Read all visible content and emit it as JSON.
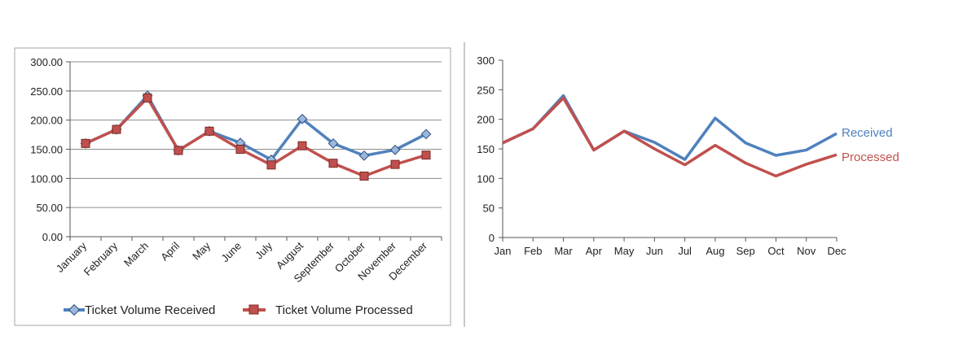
{
  "colors": {
    "received": "#4f81bd",
    "processed": "#c0504d",
    "grid": "#8c8c8c",
    "axis": "#555555",
    "frame": "#a6a6a6",
    "divider": "#c8c8c8"
  },
  "chart_data": [
    {
      "type": "line",
      "categories": [
        "January",
        "February",
        "March",
        "April",
        "May",
        "June",
        "July",
        "August",
        "September",
        "October",
        "November",
        "December"
      ],
      "series": [
        {
          "name": "Ticket Volume Received",
          "values": [
            160,
            184,
            242,
            148,
            181,
            161,
            132,
            202,
            160,
            139,
            149,
            176
          ]
        },
        {
          "name": "Ticket Volume Processed",
          "values": [
            160,
            184,
            238,
            148,
            181,
            150,
            123,
            156,
            126,
            104,
            124,
            140
          ]
        }
      ],
      "yticks": [
        "0.00",
        "50.00",
        "100.00",
        "150.00",
        "200.00",
        "250.00",
        "300.00"
      ],
      "ylim": [
        0,
        300
      ],
      "grid": true,
      "markers": true,
      "legend": {
        "placement": "bottom",
        "entries": [
          "Ticket Volume Received",
          "Ticket Volume Processed"
        ]
      },
      "title": "",
      "xlabel": "",
      "ylabel": ""
    },
    {
      "type": "line",
      "categories": [
        "Jan",
        "Feb",
        "Mar",
        "Apr",
        "May",
        "Jun",
        "Jul",
        "Aug",
        "Sep",
        "Oct",
        "Nov",
        "Dec"
      ],
      "series": [
        {
          "name": "Received",
          "values": [
            160,
            184,
            240,
            148,
            180,
            161,
            132,
            202,
            160,
            139,
            148,
            176
          ]
        },
        {
          "name": "Processed",
          "values": [
            160,
            184,
            236,
            148,
            180,
            150,
            123,
            156,
            126,
            104,
            124,
            140
          ]
        }
      ],
      "yticks": [
        "0",
        "50",
        "100",
        "150",
        "200",
        "250",
        "300"
      ],
      "ylim": [
        0,
        300
      ],
      "grid": false,
      "markers": false,
      "legend": {
        "placement": "line-end",
        "entries": [
          "Received",
          "Processed"
        ]
      },
      "title": "",
      "xlabel": "",
      "ylabel": ""
    }
  ]
}
